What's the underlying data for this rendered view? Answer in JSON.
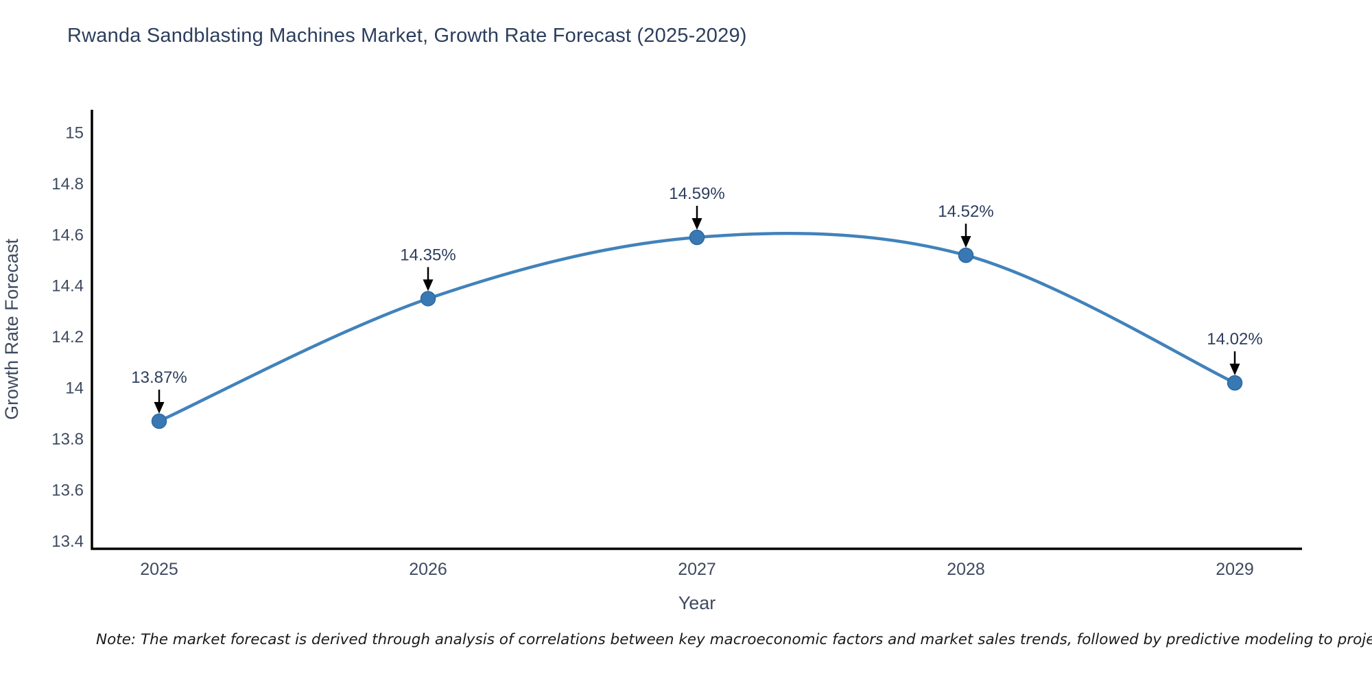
{
  "title": "Rwanda Sandblasting Machines Market, Growth Rate Forecast (2025-2029)",
  "note": "Note: The market forecast is derived through analysis of correlations between key macroeconomic factors and market sales trends, followed by predictive modeling to project future sal",
  "chart_data": {
    "type": "line",
    "title": "Rwanda Sandblasting Machines Market, Growth Rate Forecast (2025-2029)",
    "x": [
      2025,
      2026,
      2027,
      2028,
      2029
    ],
    "series": [
      {
        "name": "Growth Rate Forecast",
        "values": [
          13.87,
          14.35,
          14.59,
          14.52,
          14.02
        ]
      }
    ],
    "point_labels": [
      "13.87%",
      "14.35%",
      "14.59%",
      "14.52%",
      "14.02%"
    ],
    "xlabel": "Year",
    "ylabel": "Growth Rate Forecast",
    "x_tick_labels": [
      "2025",
      "2026",
      "2027",
      "2028",
      "2029"
    ],
    "y_ticks": [
      13.4,
      13.6,
      13.8,
      14,
      14.2,
      14.4,
      14.6,
      14.8,
      15
    ],
    "xlim": [
      2024.75,
      2029.25
    ],
    "ylim": [
      13.37,
      15.09
    ],
    "grid": false,
    "legend": "none",
    "smooth": true,
    "colors": {
      "line": "#4182bb",
      "marker_fill": "#3879b4",
      "marker_stroke": "#2d689f",
      "axis": "#000000",
      "tick_label": "#3e4a5f",
      "axis_title": "#3e4a5f",
      "annotation_text": "#2c3e5d",
      "annotation_arrow": "#000000",
      "title": "#2c3e5d"
    }
  }
}
